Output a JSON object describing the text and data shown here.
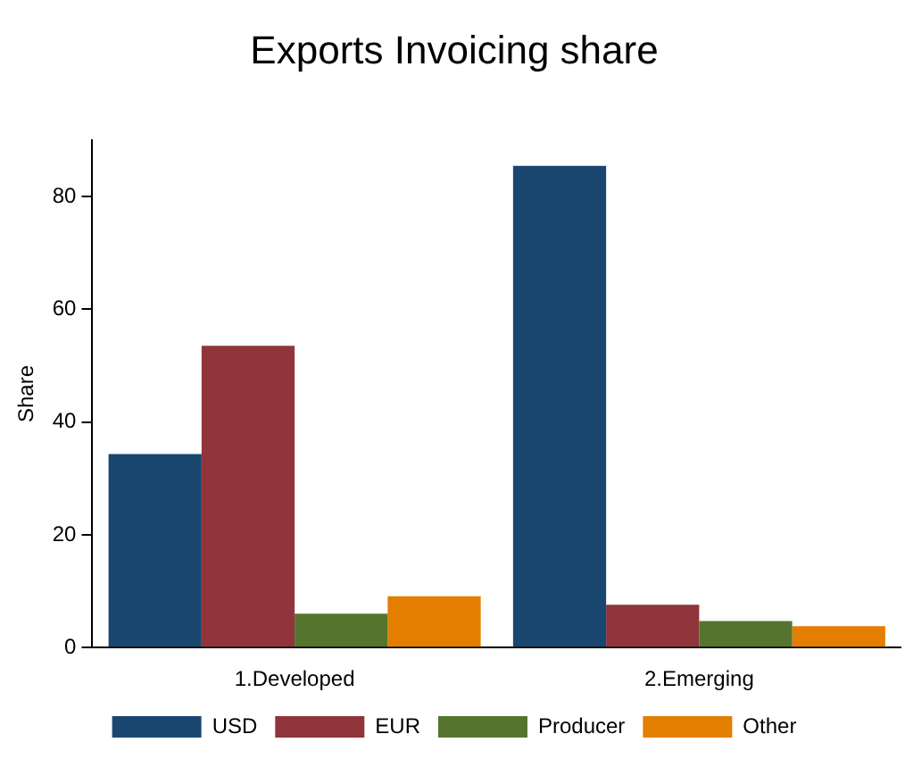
{
  "chart_data": {
    "type": "bar",
    "title": "Exports Invoicing share",
    "ylabel": "Share",
    "categories": [
      "1.Developed",
      "2.Emerging"
    ],
    "series": [
      {
        "name": "USD",
        "color": "#1a476f",
        "values": [
          34.3,
          85.4
        ]
      },
      {
        "name": "EUR",
        "color": "#90353b",
        "values": [
          53.5,
          7.6
        ]
      },
      {
        "name": "Producer",
        "color": "#55752f",
        "values": [
          6.0,
          4.7
        ]
      },
      {
        "name": "Other",
        "color": "#e37e00",
        "values": [
          9.1,
          3.8
        ]
      }
    ],
    "ylim": [
      0,
      90
    ],
    "yticks": [
      0,
      20,
      40,
      60,
      80
    ],
    "grid": false,
    "legend": "bottom"
  }
}
